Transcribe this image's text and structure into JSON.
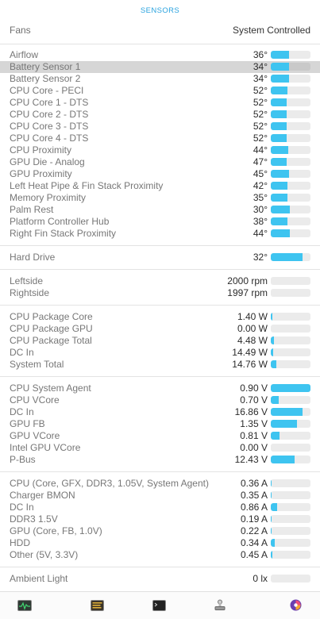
{
  "header": {
    "title": "SENSORS"
  },
  "fans": {
    "label": "Fans",
    "value": "System Controlled"
  },
  "groups": [
    {
      "id": "temps",
      "rows": [
        {
          "label": "Airflow",
          "value": "36°",
          "level": 0.46
        },
        {
          "label": "Battery Sensor 1",
          "value": "34°",
          "level": 0.46,
          "highlighted": true
        },
        {
          "label": "Battery Sensor 2",
          "value": "34°",
          "level": 0.46
        },
        {
          "label": "CPU Core - PECI",
          "value": "52°",
          "level": 0.42
        },
        {
          "label": "CPU Core 1 - DTS",
          "value": "52°",
          "level": 0.4
        },
        {
          "label": "CPU Core 2 - DTS",
          "value": "52°",
          "level": 0.4
        },
        {
          "label": "CPU Core 3 - DTS",
          "value": "52°",
          "level": 0.4
        },
        {
          "label": "CPU Core 4 - DTS",
          "value": "52°",
          "level": 0.4
        },
        {
          "label": "CPU Proximity",
          "value": "44°",
          "level": 0.44
        },
        {
          "label": "GPU Die - Analog",
          "value": "47°",
          "level": 0.4
        },
        {
          "label": "GPU Proximity",
          "value": "45°",
          "level": 0.46
        },
        {
          "label": "Left Heat Pipe & Fin Stack Proximity",
          "value": "42°",
          "level": 0.42
        },
        {
          "label": "Memory Proximity",
          "value": "35°",
          "level": 0.42
        },
        {
          "label": "Palm Rest",
          "value": "30°",
          "level": 0.48
        },
        {
          "label": "Platform Controller Hub",
          "value": "38°",
          "level": 0.42
        },
        {
          "label": "Right Fin Stack Proximity",
          "value": "44°",
          "level": 0.48
        }
      ]
    },
    {
      "id": "drive",
      "rows": [
        {
          "label": "Hard Drive",
          "value": "32°",
          "level": 0.8
        }
      ]
    },
    {
      "id": "fan-speeds",
      "rows": [
        {
          "label": "Leftside",
          "value": "2000 rpm",
          "level": 0
        },
        {
          "label": "Rightside",
          "value": "1997 rpm",
          "level": 0
        }
      ]
    },
    {
      "id": "power",
      "rows": [
        {
          "label": "CPU Package Core",
          "value": "1.40 W",
          "level": 0.04
        },
        {
          "label": "CPU Package GPU",
          "value": "0.00 W",
          "level": 0
        },
        {
          "label": "CPU Package Total",
          "value": "4.48 W",
          "level": 0.08
        },
        {
          "label": "DC In",
          "value": "14.49 W",
          "level": 0.06
        },
        {
          "label": "System Total",
          "value": "14.76 W",
          "level": 0.14
        }
      ]
    },
    {
      "id": "voltage",
      "rows": [
        {
          "label": "CPU System Agent",
          "value": "0.90 V",
          "level": 1.0
        },
        {
          "label": "CPU VCore",
          "value": "0.70 V",
          "level": 0.2
        },
        {
          "label": "DC In",
          "value": "16.86 V",
          "level": 0.8
        },
        {
          "label": "GPU FB",
          "value": "1.35 V",
          "level": 0.66
        },
        {
          "label": "GPU VCore",
          "value": "0.81 V",
          "level": 0.22
        },
        {
          "label": "Intel GPU VCore",
          "value": "0.00 V",
          "level": 0
        },
        {
          "label": "P-Bus",
          "value": "12.43 V",
          "level": 0.6
        }
      ]
    },
    {
      "id": "current",
      "rows": [
        {
          "label": "CPU (Core, GFX, DDR3, 1.05V, System Agent)",
          "value": "0.36 A",
          "level": 0.02
        },
        {
          "label": "Charger BMON",
          "value": "0.35 A",
          "level": 0.02
        },
        {
          "label": "DC In",
          "value": "0.86 A",
          "level": 0.16
        },
        {
          "label": "DDR3 1.5V",
          "value": "0.19 A",
          "level": 0.02
        },
        {
          "label": "GPU (Core, FB, 1.0V)",
          "value": "0.22 A",
          "level": 0.02
        },
        {
          "label": "HDD",
          "value": "0.34 A",
          "level": 0.1
        },
        {
          "label": "Other (5V, 3.3V)",
          "value": "0.45 A",
          "level": 0.04
        }
      ]
    },
    {
      "id": "light",
      "rows": [
        {
          "label": "Ambient Light",
          "value": "0 lx",
          "level": 0
        }
      ]
    }
  ],
  "toolbar": [
    {
      "name": "activity-monitor-icon"
    },
    {
      "name": "console-warning-icon"
    },
    {
      "name": "terminal-icon"
    },
    {
      "name": "system-information-icon"
    },
    {
      "name": "istat-menus-icon"
    }
  ],
  "colors": {
    "accent": "#3ec4f0",
    "title": "#2aa3df",
    "track": "#ebebeb",
    "highlight": "#d6d6d6"
  }
}
